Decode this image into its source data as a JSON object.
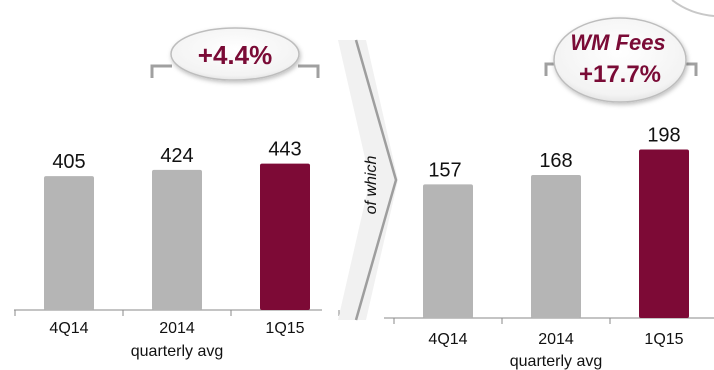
{
  "colors": {
    "bar_default": "#b5b5b5",
    "bar_highlight": "#7d0a36",
    "accent_text": "#7a0b36",
    "axis": "#8a8a8a",
    "connector": "#9e9e9e"
  },
  "connector_label": "of which",
  "chart_data": [
    {
      "type": "bar",
      "categories": [
        "4Q14",
        "2014",
        "1Q15"
      ],
      "category_sublabels": [
        "",
        "quarterly avg",
        ""
      ],
      "values": [
        405,
        424,
        443
      ],
      "highlight_index": 2,
      "callout": [
        "+4.4%"
      ],
      "ylim": [
        0,
        460
      ]
    },
    {
      "type": "bar",
      "categories": [
        "4Q14",
        "2014",
        "1Q15"
      ],
      "category_sublabels": [
        "",
        "quarterly avg",
        ""
      ],
      "values": [
        157,
        168,
        198
      ],
      "highlight_index": 2,
      "callout": [
        "WM Fees",
        "+17.7%"
      ],
      "ylim": [
        0,
        215
      ]
    }
  ]
}
